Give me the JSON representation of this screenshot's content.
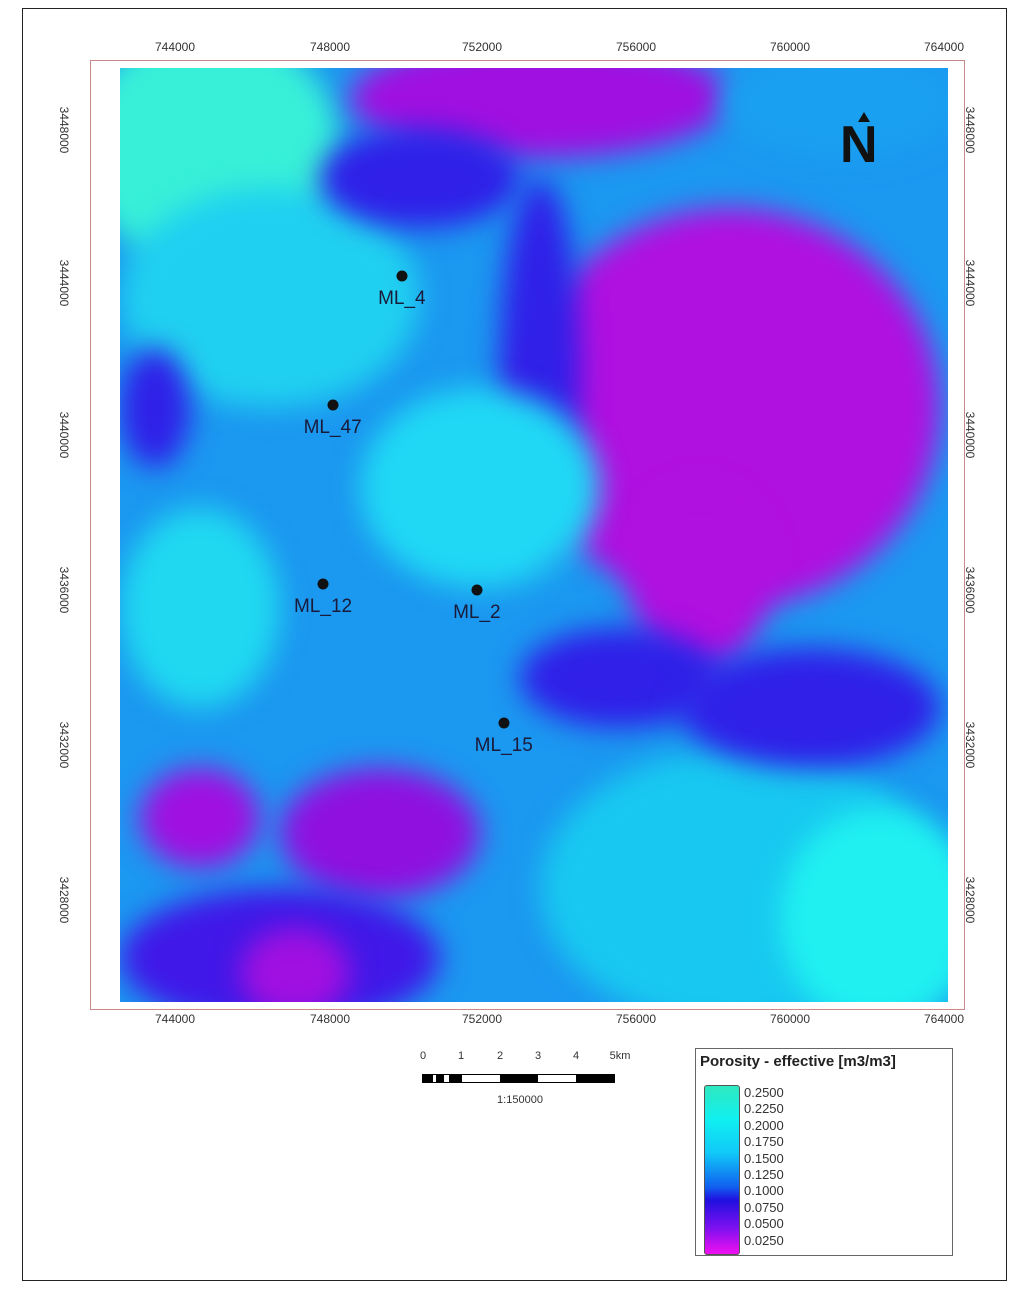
{
  "map": {
    "x_ticks": [
      "744000",
      "748000",
      "752000",
      "756000",
      "760000",
      "764000"
    ],
    "y_ticks": [
      "3448000",
      "3444000",
      "3440000",
      "3436000",
      "3432000",
      "3428000"
    ],
    "wells": [
      {
        "name": "ML_4",
        "easting": 749900,
        "northing": 3444200
      },
      {
        "name": "ML_47",
        "easting": 748100,
        "northing": 3440850
      },
      {
        "name": "ML_12",
        "easting": 747850,
        "northing": 3436200
      },
      {
        "name": "ML_2",
        "easting": 751850,
        "northing": 3436050
      },
      {
        "name": "ML_15",
        "easting": 752550,
        "northing": 3432600
      }
    ],
    "north_label": "N"
  },
  "scale_bar": {
    "labels": [
      "0",
      "1",
      "2",
      "3",
      "4",
      "5km"
    ],
    "ratio": "1:150000"
  },
  "legend": {
    "title": "Porosity - effective [m3/m3]",
    "values": [
      "0.2500",
      "0.2250",
      "0.2000",
      "0.1750",
      "0.1500",
      "0.1250",
      "0.1000",
      "0.0750",
      "0.0500",
      "0.0250"
    ],
    "colors": {
      "high": "#2fe8c0",
      "mid": "#1060f0",
      "low": "#f010f0"
    }
  }
}
